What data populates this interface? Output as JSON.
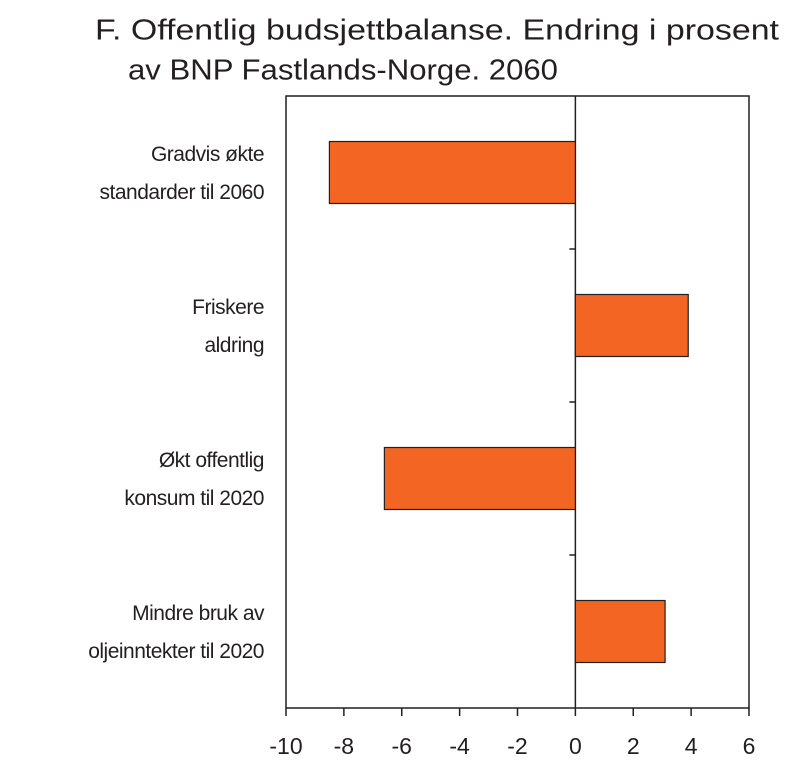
{
  "chart_data": {
    "type": "barh",
    "title": [
      "F. Offentlig budsjettbalanse. Endring i prosent",
      "av BNP Fastlands-Norge. 2060"
    ],
    "categories": [
      [
        "Gradvis økte",
        "standarder til 2060"
      ],
      [
        "Friskere",
        "aldring"
      ],
      [
        "Økt offentlig",
        "konsum til 2020"
      ],
      [
        "Mindre bruk av",
        "oljeinntekter til 2020"
      ]
    ],
    "values": [
      -8.5,
      3.9,
      -6.6,
      3.1
    ],
    "color": "#f26522",
    "xlim": [
      -10,
      6
    ],
    "xticks": [
      -10,
      -8,
      -6,
      -4,
      -2,
      0,
      2,
      4,
      6
    ]
  }
}
